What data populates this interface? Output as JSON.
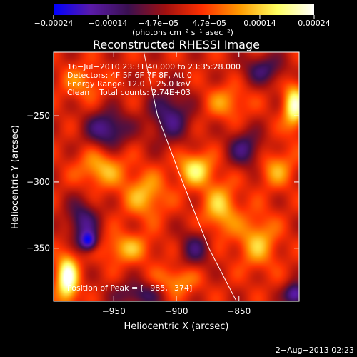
{
  "chart_data": {
    "type": "heatmap",
    "title": "Reconstructed RHESSI Image",
    "xlabel": "Heliocentric X (arcsec)",
    "ylabel": "Heliocentric Y (arcsec)",
    "xlim": [
      -998,
      -802
    ],
    "ylim": [
      -390,
      -202
    ],
    "x_ticks": [
      -950,
      -900,
      -850
    ],
    "x_tick_labels": [
      "−950",
      "−900",
      "−850"
    ],
    "y_ticks": [
      -250,
      -300,
      -350
    ],
    "y_tick_labels": [
      "−250",
      "−300",
      "−350"
    ],
    "colorbar": {
      "ticks": [
        -0.00024,
        -0.00014,
        -4.7e-05,
        4.7e-05,
        0.00014,
        0.00024
      ],
      "tick_labels": [
        "−0.00024",
        "−0.00014",
        "−4.7e−05",
        "4.7e−05",
        "0.00014",
        "0.00024"
      ],
      "unit_label": "(photons cm⁻² s⁻¹ asec⁻²)",
      "range": [
        -0.00024,
        0.00024
      ],
      "colors": [
        "#0000ff",
        "#5a1aa8",
        "#3a1050",
        "#a01010",
        "#ff3000",
        "#ff9a00",
        "#ffff60",
        "#ffffff"
      ]
    },
    "annotations": {
      "time_range": "16−Jul−2010 23:31:40.000 to 23:35:28.000",
      "detectors": "Detectors: 4F 5F 6F 7F 8F, Att 0",
      "energy": "Energy Range: 12.0 − 25.0 keV",
      "clean": "Clean    Total counts: 2.74E+03",
      "peak": "Position of Peak = [−985,−374]"
    },
    "peak_position": [
      -985,
      -374
    ],
    "limb_curve": [
      [
        -926,
        -202
      ],
      [
        -915,
        -250
      ],
      [
        -895,
        -300
      ],
      [
        -874,
        -350
      ],
      [
        -852,
        -390
      ]
    ],
    "intensity_blobs": [
      {
        "x": -987,
        "y": -373,
        "v": 0.00024,
        "sx": 6,
        "sy": 13
      },
      {
        "x": -806,
        "y": -243,
        "v": 0.0002,
        "sx": 6,
        "sy": 12
      },
      {
        "x": -960,
        "y": -290,
        "v": 0.00012,
        "sx": 13,
        "sy": 10
      },
      {
        "x": -925,
        "y": -310,
        "v": 0.00012,
        "sx": 12,
        "sy": 12
      },
      {
        "x": -885,
        "y": -290,
        "v": 0.00016,
        "sx": 10,
        "sy": 9
      },
      {
        "x": -865,
        "y": -320,
        "v": 0.00013,
        "sx": 10,
        "sy": 14
      },
      {
        "x": -940,
        "y": -350,
        "v": 0.00011,
        "sx": 14,
        "sy": 8
      },
      {
        "x": -835,
        "y": -345,
        "v": 0.00012,
        "sx": 11,
        "sy": 14
      },
      {
        "x": -820,
        "y": -290,
        "v": 0.0001,
        "sx": 10,
        "sy": 10
      },
      {
        "x": -860,
        "y": -240,
        "v": 9e-05,
        "sx": 12,
        "sy": 9
      },
      {
        "x": -975,
        "y": -225,
        "v": 8e-05,
        "sx": 12,
        "sy": 9
      },
      {
        "x": -900,
        "y": -375,
        "v": 0.0001,
        "sx": 12,
        "sy": 8
      },
      {
        "x": -955,
        "y": -260,
        "v": -0.00016,
        "sx": 12,
        "sy": 10
      },
      {
        "x": -905,
        "y": -250,
        "v": -0.00014,
        "sx": 12,
        "sy": 14
      },
      {
        "x": -975,
        "y": -330,
        "v": -0.00014,
        "sx": 9,
        "sy": 12
      },
      {
        "x": -970,
        "y": -345,
        "v": -0.0002,
        "sx": 5,
        "sy": 5
      },
      {
        "x": -930,
        "y": -385,
        "v": -0.00012,
        "sx": 14,
        "sy": 7
      },
      {
        "x": -845,
        "y": -275,
        "v": -0.00013,
        "sx": 10,
        "sy": 10
      },
      {
        "x": -805,
        "y": -385,
        "v": -0.0002,
        "sx": 6,
        "sy": 6
      },
      {
        "x": -885,
        "y": -350,
        "v": -0.00011,
        "sx": 9,
        "sy": 10
      },
      {
        "x": -830,
        "y": -215,
        "v": -0.00012,
        "sx": 12,
        "sy": 8
      }
    ]
  },
  "footer": {
    "date": "2−Aug−2013 02:23"
  }
}
